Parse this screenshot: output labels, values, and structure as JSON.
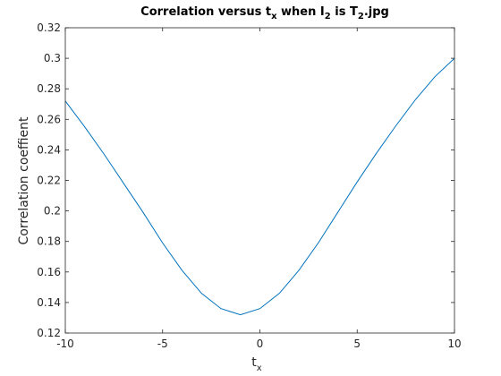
{
  "chart_data": {
    "type": "line",
    "title": {
      "prefix": "Correlation versus t",
      "prefix_sub": "x",
      "middle": " when I",
      "middle_sub": "2",
      "suffix1": " is T",
      "suffix1_sub": "2",
      "suffix2": ".jpg"
    },
    "xlabel": {
      "base": "t",
      "sub": "x"
    },
    "ylabel": "Correlation coeffient",
    "xlim": [
      -10,
      10
    ],
    "ylim": [
      0.12,
      0.32
    ],
    "xticks": [
      -10,
      -5,
      0,
      5,
      10
    ],
    "xtick_labels": [
      "-10",
      "-5",
      "0",
      "5",
      "10"
    ],
    "yticks": [
      0.12,
      0.14,
      0.16,
      0.18,
      0.2,
      0.22,
      0.24,
      0.26,
      0.28,
      0.3,
      0.32
    ],
    "ytick_labels": [
      "0.12",
      "0.14",
      "0.16",
      "0.18",
      "0.2",
      "0.22",
      "0.24",
      "0.26",
      "0.28",
      "0.3",
      "0.32"
    ],
    "grid": false,
    "series": [
      {
        "color": "#0072BD",
        "x": [
          -10,
          -9,
          -8,
          -7,
          -6,
          -5,
          -4,
          -3,
          -2,
          -1,
          0,
          1,
          2,
          3,
          4,
          5,
          6,
          7,
          8,
          9,
          10
        ],
        "y": [
          0.272,
          0.255,
          0.237,
          0.218,
          0.199,
          0.179,
          0.161,
          0.146,
          0.136,
          0.132,
          0.136,
          0.146,
          0.161,
          0.179,
          0.199,
          0.219,
          0.238,
          0.256,
          0.273,
          0.288,
          0.3
        ]
      }
    ]
  }
}
